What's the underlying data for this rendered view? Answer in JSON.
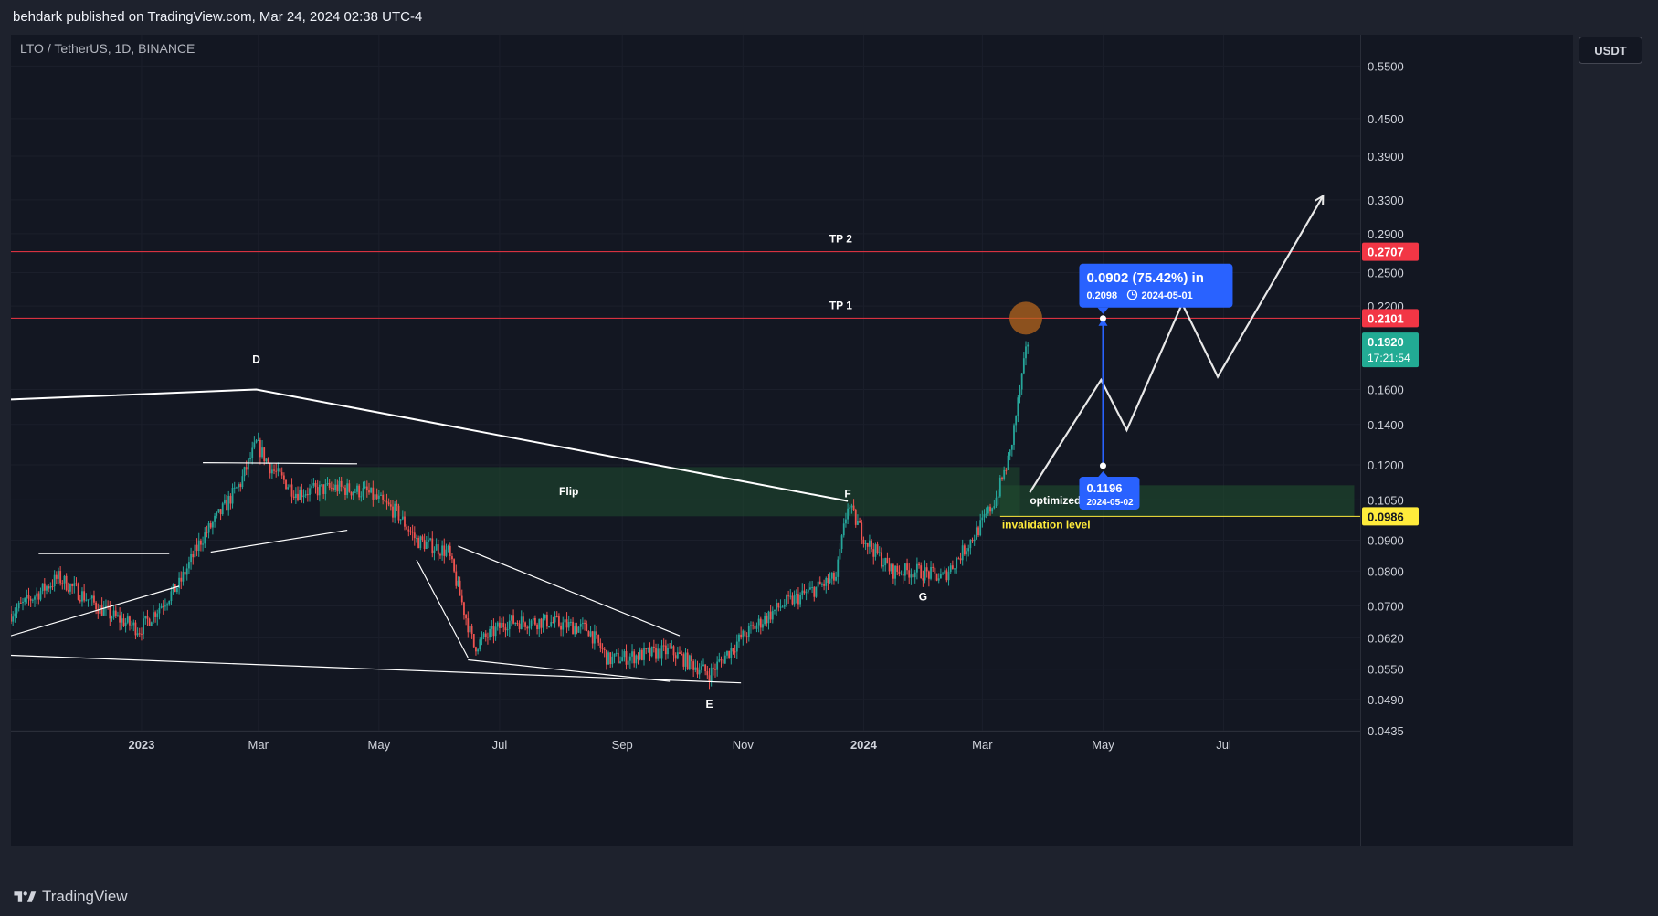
{
  "header": {
    "published_text": "behdark published on TradingView.com, Mar 24, 2024 02:38 UTC-4"
  },
  "symbol": {
    "title": "LTO / TetherUS, 1D, BINANCE"
  },
  "price_axis": {
    "currency": "USDT"
  },
  "footer": {
    "brand": "TradingView"
  },
  "colors": {
    "background": "#131722",
    "frame": "#1e222d",
    "up_candle": "#26a69a",
    "down_candle": "#ef5350",
    "tp_line": "#f23645",
    "invalidation": "#ffeb3b",
    "flip_zone": "#1f4d2f",
    "measure_blue": "#2962ff",
    "current_price_teal": "#22ab94",
    "drawing_white": "#ffffff",
    "target_circle": "#b5651d"
  },
  "chart_data": {
    "type": "candlestick",
    "scale": "log",
    "grid": true,
    "ylim": [
      0.0435,
      0.62
    ],
    "y_ticks": [
      "0.5500",
      "0.4500",
      "0.3900",
      "0.3300",
      "0.2900",
      "0.2500",
      "0.2200",
      "0.1600",
      "0.1400",
      "0.1200",
      "0.1050",
      "0.0900",
      "0.0800",
      "0.0700",
      "0.0620",
      "0.0550",
      "0.0490",
      "0.0435"
    ],
    "x_ticks": [
      {
        "label": "2023",
        "date": "2023-01-01",
        "bold": true
      },
      {
        "label": "Mar",
        "date": "2023-03-01"
      },
      {
        "label": "May",
        "date": "2023-05-01"
      },
      {
        "label": "Jul",
        "date": "2023-07-01"
      },
      {
        "label": "Sep",
        "date": "2023-09-01"
      },
      {
        "label": "Nov",
        "date": "2023-11-01"
      },
      {
        "label": "2024",
        "date": "2024-01-01",
        "bold": true
      },
      {
        "label": "Mar",
        "date": "2024-03-01"
      },
      {
        "label": "May",
        "date": "2024-05-01"
      },
      {
        "label": "Jul",
        "date": "2024-07-01"
      }
    ],
    "x_range": [
      "2022-10-27",
      "2024-09-08"
    ],
    "price_path": [
      [
        "2022-10-27",
        0.068
      ],
      [
        "2022-11-20",
        0.078
      ],
      [
        "2022-12-15",
        0.068
      ],
      [
        "2022-12-31",
        0.064
      ],
      [
        "2023-01-20",
        0.076
      ],
      [
        "2023-01-31",
        0.09
      ],
      [
        "2023-02-10",
        0.1
      ],
      [
        "2023-02-20",
        0.112
      ],
      [
        "2023-02-28",
        0.13
      ],
      [
        "2023-03-08",
        0.118
      ],
      [
        "2023-03-20",
        0.108
      ],
      [
        "2023-04-10",
        0.11
      ],
      [
        "2023-04-25",
        0.108
      ],
      [
        "2023-05-10",
        0.1
      ],
      [
        "2023-05-20",
        0.09
      ],
      [
        "2023-06-05",
        0.086
      ],
      [
        "2023-06-18",
        0.06
      ],
      [
        "2023-07-05",
        0.066
      ],
      [
        "2023-07-25",
        0.066
      ],
      [
        "2023-08-15",
        0.064
      ],
      [
        "2023-08-25",
        0.057
      ],
      [
        "2023-09-10",
        0.058
      ],
      [
        "2023-09-25",
        0.059
      ],
      [
        "2023-10-15",
        0.054
      ],
      [
        "2023-10-31",
        0.062
      ],
      [
        "2023-11-20",
        0.07
      ],
      [
        "2023-12-05",
        0.074
      ],
      [
        "2023-12-18",
        0.078
      ],
      [
        "2023-12-24",
        0.103
      ],
      [
        "2024-01-02",
        0.09
      ],
      [
        "2024-01-15",
        0.08
      ],
      [
        "2024-01-28",
        0.08
      ],
      [
        "2024-02-10",
        0.078
      ],
      [
        "2024-02-20",
        0.086
      ],
      [
        "2024-03-01",
        0.096
      ],
      [
        "2024-03-08",
        0.106
      ],
      [
        "2024-03-15",
        0.125
      ],
      [
        "2024-03-20",
        0.16
      ],
      [
        "2024-03-24",
        0.192
      ]
    ],
    "horizontal_levels": [
      {
        "label": "TP 2",
        "price": 0.2707,
        "tag": "0.2707"
      },
      {
        "label": "TP 1",
        "price": 0.2101,
        "tag": "0.2101"
      },
      {
        "label": "invalidation level",
        "price": 0.0986,
        "tag": "0.0986"
      }
    ],
    "current_price": {
      "value": "0.1920",
      "countdown": "17:21:54"
    },
    "zones": [
      {
        "label": "Flip",
        "from": "2023-04-01",
        "to": "2024-03-20",
        "low": 0.0986,
        "high": 0.119
      },
      {
        "label": "optimized",
        "from": "2024-03-10",
        "to": "2024-09-05",
        "low": 0.0986,
        "high": 0.111
      }
    ],
    "wave_labels": [
      {
        "label": "D",
        "date": "2023-02-28",
        "price": 0.177
      },
      {
        "label": "E",
        "date": "2023-10-15",
        "price": 0.0475
      },
      {
        "label": "F",
        "date": "2023-12-24",
        "price": 0.106
      },
      {
        "label": "G",
        "date": "2024-01-31",
        "price": 0.0715
      }
    ],
    "measure": {
      "date": "2024-05-01",
      "from": 0.1196,
      "to": 0.2098,
      "change_text": "0.0902 (75.42%) in",
      "end_text": "0.2098",
      "end_date": "2024-05-01",
      "start_text": "0.1196",
      "start_date": "2024-05-02"
    },
    "projection": [
      [
        "2024-03-25",
        0.108
      ],
      [
        "2024-04-30",
        0.166
      ],
      [
        "2024-05-13",
        0.137
      ],
      [
        "2024-06-10",
        0.222
      ],
      [
        "2024-06-28",
        0.168
      ],
      [
        "2024-08-20",
        0.334
      ]
    ],
    "trendlines": [
      [
        [
          "2022-10-27",
          0.154
        ],
        [
          "2023-02-28",
          0.16
        ],
        [
          "2023-12-24",
          0.1045
        ]
      ],
      [
        [
          "2022-10-27",
          0.058
        ],
        [
          "2023-10-31",
          0.0522
        ]
      ],
      [
        [
          "2022-10-27",
          0.0625
        ],
        [
          "2023-01-20",
          0.0755
        ]
      ],
      [
        [
          "2022-11-10",
          0.0855
        ],
        [
          "2023-01-15",
          0.0855
        ]
      ],
      [
        [
          "2023-02-01",
          0.121
        ],
        [
          "2023-04-20",
          0.1205
        ]
      ],
      [
        [
          "2023-02-05",
          0.086
        ],
        [
          "2023-04-15",
          0.0935
        ]
      ],
      [
        [
          "2023-05-20",
          0.0835
        ],
        [
          "2023-06-15",
          0.0575
        ]
      ],
      [
        [
          "2023-06-10",
          0.088
        ],
        [
          "2023-09-30",
          0.0625
        ]
      ],
      [
        [
          "2023-06-15",
          0.057
        ],
        [
          "2023-09-25",
          0.0525
        ]
      ]
    ]
  }
}
